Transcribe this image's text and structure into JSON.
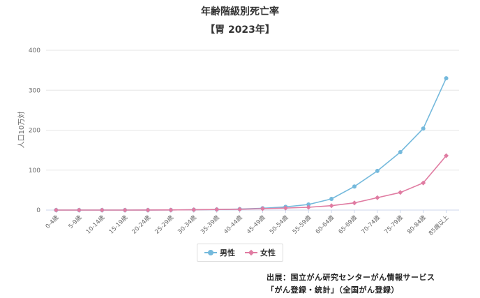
{
  "chart_data": {
    "type": "line",
    "title": "年齢階級別死亡率",
    "subtitle": "【胃 2023年】",
    "ylabel": "人口10万対",
    "xlabel": "",
    "ylim": [
      0,
      400
    ],
    "yticks": [
      0,
      100,
      200,
      300,
      400
    ],
    "grid": true,
    "legend_position": "bottom-center",
    "categories": [
      "0-4歳",
      "5-9歳",
      "10-14歳",
      "15-19歳",
      "20-24歳",
      "25-29歳",
      "30-34歳",
      "35-39歳",
      "40-44歳",
      "45-49歳",
      "50-54歳",
      "55-59歳",
      "60-64歳",
      "65-69歳",
      "70-74歳",
      "75-79歳",
      "80-84歳",
      "85歳以上"
    ],
    "series": [
      {
        "name": "男性",
        "color": "#74b9dc",
        "marker": "circle",
        "values": [
          0,
          0,
          0,
          0,
          0.1,
          0.3,
          0.8,
          1.5,
          2.5,
          4.5,
          8,
          14,
          28,
          59,
          98,
          145,
          204,
          330
        ]
      },
      {
        "name": "女性",
        "color": "#e07ca2",
        "marker": "diamond",
        "values": [
          0,
          0,
          0,
          0,
          0.1,
          0.3,
          0.8,
          1.5,
          2.0,
          3.5,
          5,
          7,
          11,
          18,
          31,
          44,
          68,
          136
        ]
      }
    ]
  },
  "source": {
    "line1": "出展：国立がん研究センターがん情報サービス",
    "line2": "「がん登録・統計」（全国がん登録）"
  }
}
